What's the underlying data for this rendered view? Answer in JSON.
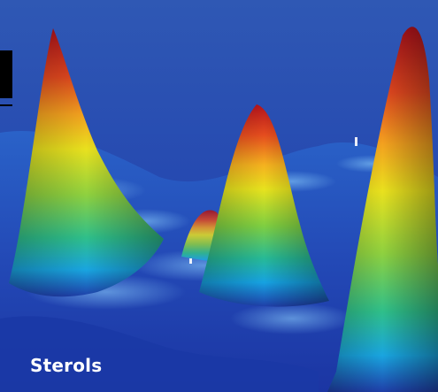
{
  "caption": {
    "text": "Sterols"
  },
  "colors": {
    "background": "#2f58b4",
    "peak_top": "#b0121c",
    "peak_mid": "#f08a1e",
    "peak_yellow": "#e6e11c",
    "peak_green": "#6cc24a",
    "peak_base": "#1aa6e0",
    "plane": "#1f3ea8",
    "caption": "#ffffff"
  },
  "image": {
    "subject": "3d-surface-peaks-image"
  }
}
